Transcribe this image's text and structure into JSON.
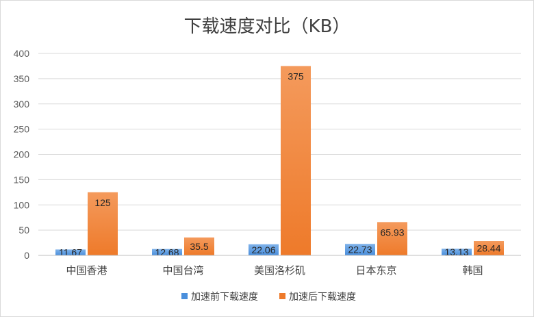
{
  "chart_data": {
    "type": "bar",
    "title": "下载速度对比（KB）",
    "categories": [
      "中国香港",
      "中国台湾",
      "美国洛杉矶",
      "日本东京",
      "韩国"
    ],
    "series": [
      {
        "name": "加速前下载速度",
        "values": [
          11.67,
          12.68,
          22.06,
          22.73,
          13.13
        ],
        "labels": [
          "11.67",
          "12.68",
          "22.06",
          "22.73",
          "13.13"
        ],
        "color": "#4a8fdc"
      },
      {
        "name": "加速后下载速度",
        "values": [
          125,
          35.5,
          375,
          65.93,
          28.44
        ],
        "labels": [
          "125",
          "35.5",
          "375",
          "65.93",
          "28.44"
        ],
        "color": "#ee7a2a"
      }
    ],
    "ylim": [
      0,
      400
    ],
    "yticks": [
      0,
      50,
      100,
      150,
      200,
      250,
      300,
      350,
      400
    ],
    "ytick_labels": [
      "0",
      "50",
      "100",
      "150",
      "200",
      "250",
      "300",
      "350",
      "400"
    ],
    "grid": true,
    "legend_position": "bottom"
  }
}
